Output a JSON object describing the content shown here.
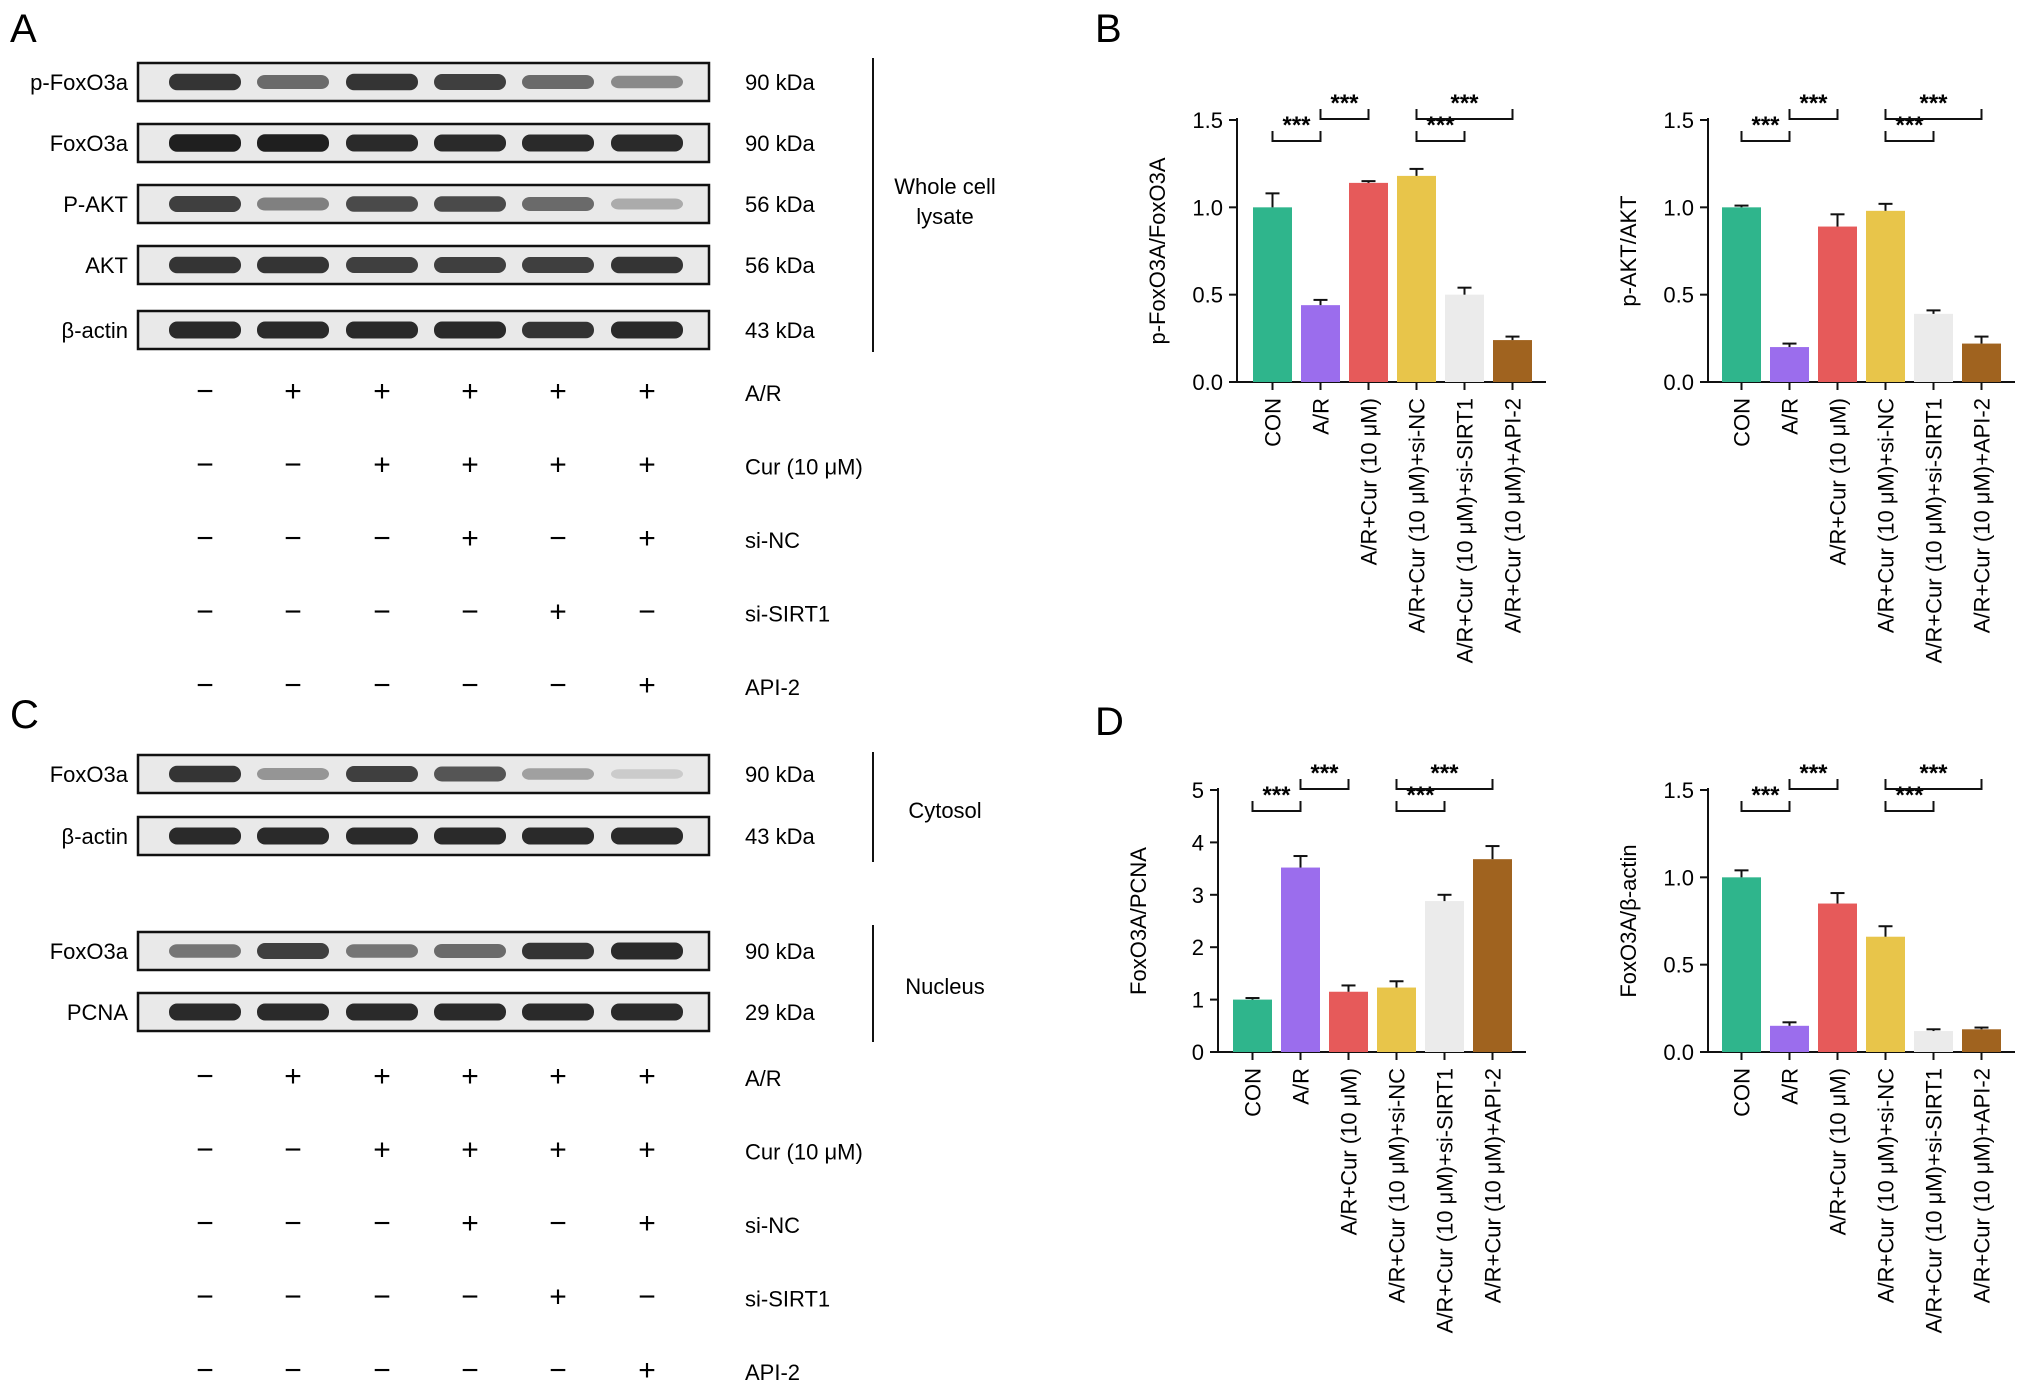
{
  "panel_labels": [
    "A",
    "B",
    "C",
    "D"
  ],
  "blot_A": {
    "rows": [
      {
        "label": "p-FoxO3a",
        "kda": "90 kDa",
        "intensity": [
          0.85,
          0.6,
          0.85,
          0.8,
          0.6,
          0.45
        ]
      },
      {
        "label": "FoxO3a",
        "kda": "90 kDa",
        "intensity": [
          0.95,
          0.95,
          0.9,
          0.9,
          0.9,
          0.9
        ]
      },
      {
        "label": "P-AKT",
        "kda": "56 kDa",
        "intensity": [
          0.8,
          0.5,
          0.75,
          0.75,
          0.6,
          0.3
        ]
      },
      {
        "label": "AKT",
        "kda": "56 kDa",
        "intensity": [
          0.85,
          0.85,
          0.8,
          0.8,
          0.8,
          0.85
        ]
      },
      {
        "label": "β-actin",
        "kda": "43 kDa",
        "intensity": [
          0.9,
          0.9,
          0.9,
          0.9,
          0.85,
          0.9
        ]
      }
    ],
    "groups": [
      {
        "label": "Whole cell lysate"
      }
    ]
  },
  "blot_C": {
    "rows": [
      {
        "label": "FoxO3a",
        "kda": "90 kDa",
        "intensity": [
          0.85,
          0.4,
          0.8,
          0.7,
          0.35,
          0.15
        ]
      },
      {
        "label": "β-actin",
        "kda": "43 kDa",
        "intensity": [
          0.9,
          0.9,
          0.9,
          0.9,
          0.9,
          0.9
        ]
      },
      {
        "label": "FoxO3a",
        "kda": "90 kDa",
        "intensity": [
          0.55,
          0.8,
          0.55,
          0.6,
          0.85,
          0.9
        ]
      },
      {
        "label": "PCNA",
        "kda": "29 kDa",
        "intensity": [
          0.9,
          0.9,
          0.9,
          0.9,
          0.9,
          0.9
        ]
      }
    ],
    "groups": [
      {
        "label": "Cytosol"
      },
      {
        "label": "Nucleus"
      }
    ]
  },
  "treatments": [
    {
      "label": "A/R",
      "signs": [
        "−",
        "+",
        "+",
        "+",
        "+",
        "+"
      ]
    },
    {
      "label": "Cur (10 μM)",
      "signs": [
        "−",
        "−",
        "+",
        "+",
        "+",
        "+"
      ]
    },
    {
      "label": "si-NC",
      "signs": [
        "−",
        "−",
        "−",
        "+",
        "−",
        "+"
      ]
    },
    {
      "label": "si-SIRT1",
      "signs": [
        "−",
        "−",
        "−",
        "−",
        "+",
        "−"
      ]
    },
    {
      "label": "API-2",
      "signs": [
        "−",
        "−",
        "−",
        "−",
        "−",
        "+"
      ]
    }
  ],
  "colors": [
    "#2fb58c",
    "#9b6ded",
    "#e65a5a",
    "#e8c54a",
    "#ebebeb",
    "#a0631f"
  ],
  "significance_label": "***",
  "chart_data": [
    {
      "type": "bar",
      "panel": "B",
      "ylabel": "p-FoxO3A/FoxO3A",
      "categories": [
        "CON",
        "A/R",
        "A/R+Cur (10 μM)",
        "A/R+Cur (10 μM)+si-NC",
        "A/R+Cur (10 μM)+si-SIRT1",
        "A/R+Cur (10 μM)+API-2"
      ],
      "values": [
        1.0,
        0.44,
        1.14,
        1.18,
        0.5,
        0.24
      ],
      "errors": [
        0.08,
        0.03,
        0.01,
        0.04,
        0.04,
        0.02
      ],
      "ylim": [
        0,
        1.5
      ],
      "yticks": [
        "0.0",
        "0.5",
        "1.0",
        "1.5"
      ],
      "comparisons": [
        [
          0,
          1
        ],
        [
          1,
          2
        ],
        [
          3,
          4
        ],
        [
          3,
          5
        ]
      ]
    },
    {
      "type": "bar",
      "panel": "B",
      "ylabel": "p-AKT/AKT",
      "categories": [
        "CON",
        "A/R",
        "A/R+Cur (10 μM)",
        "A/R+Cur (10 μM)+si-NC",
        "A/R+Cur (10 μM)+si-SIRT1",
        "A/R+Cur (10 μM)+API-2"
      ],
      "values": [
        1.0,
        0.2,
        0.89,
        0.98,
        0.39,
        0.22
      ],
      "errors": [
        0.01,
        0.02,
        0.07,
        0.04,
        0.02,
        0.04
      ],
      "ylim": [
        0,
        1.5
      ],
      "yticks": [
        "0.0",
        "0.5",
        "1.0",
        "1.5"
      ],
      "comparisons": [
        [
          0,
          1
        ],
        [
          1,
          2
        ],
        [
          3,
          4
        ],
        [
          3,
          5
        ]
      ]
    },
    {
      "type": "bar",
      "panel": "D",
      "ylabel": "FoxO3A/PCNA",
      "categories": [
        "CON",
        "A/R",
        "A/R+Cur (10 μM)",
        "A/R+Cur (10 μM)+si-NC",
        "A/R+Cur (10 μM)+si-SIRT1",
        "A/R+Cur (10 μM)+API-2"
      ],
      "values": [
        1.0,
        3.52,
        1.15,
        1.23,
        2.88,
        3.68
      ],
      "errors": [
        0.03,
        0.22,
        0.12,
        0.12,
        0.12,
        0.25
      ],
      "ylim": [
        0,
        5
      ],
      "yticks": [
        "0",
        "1",
        "2",
        "3",
        "4",
        "5"
      ],
      "comparisons": [
        [
          0,
          1
        ],
        [
          1,
          2
        ],
        [
          3,
          4
        ],
        [
          3,
          5
        ]
      ]
    },
    {
      "type": "bar",
      "panel": "D",
      "ylabel": "FoxO3A/β-actin",
      "categories": [
        "CON",
        "A/R",
        "A/R+Cur (10 μM)",
        "A/R+Cur (10 μM)+si-NC",
        "A/R+Cur (10 μM)+si-SIRT1",
        "A/R+Cur (10 μM)+API-2"
      ],
      "values": [
        1.0,
        0.15,
        0.85,
        0.66,
        0.12,
        0.13
      ],
      "errors": [
        0.04,
        0.02,
        0.06,
        0.06,
        0.01,
        0.01
      ],
      "ylim": [
        0,
        1.5
      ],
      "yticks": [
        "0.0",
        "0.5",
        "1.0",
        "1.5"
      ],
      "comparisons": [
        [
          0,
          1
        ],
        [
          1,
          2
        ],
        [
          3,
          4
        ],
        [
          3,
          5
        ]
      ]
    }
  ]
}
